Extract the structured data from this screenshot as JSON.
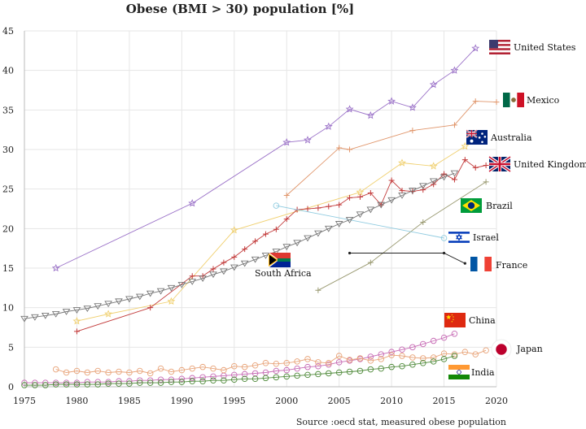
{
  "chart_data": {
    "type": "line",
    "title": "Obese (BMI > 30) population [%]",
    "source": "Source :oecd stat, measured obese population",
    "xlabel": "",
    "ylabel": "",
    "xlim": [
      1975,
      2020
    ],
    "ylim": [
      0,
      45
    ],
    "xticks": [
      1975,
      1980,
      1985,
      1990,
      1995,
      2000,
      2005,
      2010,
      2015,
      2020
    ],
    "yticks": [
      0,
      5,
      10,
      15,
      20,
      25,
      30,
      35,
      40,
      45
    ],
    "grid": true,
    "series": [
      {
        "name": "United States",
        "color": "#9b72c8",
        "marker": "star",
        "flag": "us",
        "points": [
          [
            1978,
            15.0
          ],
          [
            1991,
            23.2
          ],
          [
            2000,
            30.9
          ],
          [
            2002,
            31.2
          ],
          [
            2004,
            32.9
          ],
          [
            2006,
            35.1
          ],
          [
            2008,
            34.3
          ],
          [
            2010,
            36.1
          ],
          [
            2012,
            35.3
          ],
          [
            2014,
            38.2
          ],
          [
            2016,
            40.0
          ],
          [
            2018,
            42.8
          ]
        ]
      },
      {
        "name": "Mexico",
        "color": "#e0956a",
        "marker": "plus",
        "flag": "mx",
        "points": [
          [
            2000,
            24.2
          ],
          [
            2005,
            30.2
          ],
          [
            2006,
            30.0
          ],
          [
            2012,
            32.4
          ],
          [
            2016,
            33.1
          ],
          [
            2018,
            36.1
          ],
          [
            2020,
            36.0
          ]
        ]
      },
      {
        "name": "Australia",
        "color": "#f0d070",
        "marker": "star",
        "flag": "au",
        "points": [
          [
            1980,
            8.3
          ],
          [
            1983,
            9.2
          ],
          [
            1989,
            10.8
          ],
          [
            1995,
            19.8
          ],
          [
            2007,
            24.6
          ],
          [
            2011,
            28.3
          ],
          [
            2014,
            27.9
          ],
          [
            2017,
            30.4
          ]
        ]
      },
      {
        "name": "United Kingdom",
        "color": "#c23a3a",
        "marker": "plus",
        "flag": "gb",
        "points": [
          [
            1980,
            7.0
          ],
          [
            1987,
            10.0
          ],
          [
            1991,
            14.0
          ],
          [
            1992,
            14.0
          ],
          [
            1993,
            14.9
          ],
          [
            1994,
            15.7
          ],
          [
            1995,
            16.4
          ],
          [
            1996,
            17.4
          ],
          [
            1997,
            18.4
          ],
          [
            1998,
            19.3
          ],
          [
            1999,
            19.9
          ],
          [
            2000,
            21.2
          ],
          [
            2001,
            22.4
          ],
          [
            2002,
            22.5
          ],
          [
            2003,
            22.6
          ],
          [
            2004,
            22.8
          ],
          [
            2005,
            23.0
          ],
          [
            2006,
            23.9
          ],
          [
            2007,
            24.0
          ],
          [
            2008,
            24.5
          ],
          [
            2009,
            23.0
          ],
          [
            2010,
            26.1
          ],
          [
            2011,
            24.8
          ],
          [
            2012,
            24.7
          ],
          [
            2013,
            24.9
          ],
          [
            2014,
            25.6
          ],
          [
            2015,
            26.9
          ],
          [
            2016,
            26.2
          ],
          [
            2017,
            28.7
          ],
          [
            2018,
            27.7
          ],
          [
            2019,
            28.0
          ]
        ]
      },
      {
        "name": "Brazil",
        "color": "#9a9a72",
        "marker": "plus",
        "flag": "br",
        "points": [
          [
            2003,
            12.2
          ],
          [
            2008,
            15.7
          ],
          [
            2013,
            20.8
          ],
          [
            2019,
            25.9
          ]
        ]
      },
      {
        "name": "Israel",
        "color": "#8fcbe0",
        "marker": "circle",
        "flag": "il",
        "points": [
          [
            1999,
            22.9
          ],
          [
            2015,
            18.8
          ]
        ]
      },
      {
        "name": "France",
        "color": "#222222",
        "marker": "dot",
        "flag": "fr",
        "points": [
          [
            2006,
            16.9
          ],
          [
            2015,
            16.9
          ],
          [
            2017,
            15.6
          ]
        ]
      },
      {
        "name": "South Africa",
        "color": "#777777",
        "marker": "triangle-down",
        "flag": "za",
        "points": [
          [
            1975,
            8.6
          ],
          [
            1976,
            8.8
          ],
          [
            1977,
            9.0
          ],
          [
            1978,
            9.2
          ],
          [
            1979,
            9.5
          ],
          [
            1980,
            9.7
          ],
          [
            1981,
            9.9
          ],
          [
            1982,
            10.2
          ],
          [
            1983,
            10.5
          ],
          [
            1984,
            10.8
          ],
          [
            1985,
            11.1
          ],
          [
            1986,
            11.4
          ],
          [
            1987,
            11.8
          ],
          [
            1988,
            12.1
          ],
          [
            1989,
            12.5
          ],
          [
            1990,
            12.9
          ],
          [
            1991,
            13.3
          ],
          [
            1992,
            13.7
          ],
          [
            1993,
            14.2
          ],
          [
            1994,
            14.6
          ],
          [
            1995,
            15.1
          ],
          [
            1996,
            15.6
          ],
          [
            1997,
            16.1
          ],
          [
            1998,
            16.6
          ],
          [
            1999,
            17.1
          ],
          [
            2000,
            17.7
          ],
          [
            2001,
            18.2
          ],
          [
            2002,
            18.8
          ],
          [
            2003,
            19.4
          ],
          [
            2004,
            20.0
          ],
          [
            2005,
            20.6
          ],
          [
            2006,
            21.1
          ],
          [
            2007,
            21.8
          ],
          [
            2008,
            22.4
          ],
          [
            2009,
            23.0
          ],
          [
            2010,
            23.6
          ],
          [
            2011,
            24.2
          ],
          [
            2012,
            24.8
          ],
          [
            2013,
            25.4
          ],
          [
            2014,
            26.0
          ],
          [
            2015,
            26.5
          ],
          [
            2016,
            27.0
          ]
        ]
      },
      {
        "name": "China",
        "color": "#c76bb5",
        "marker": "circle",
        "flag": "cn",
        "points": [
          [
            1975,
            0.5
          ],
          [
            1976,
            0.5
          ],
          [
            1977,
            0.5
          ],
          [
            1978,
            0.5
          ],
          [
            1979,
            0.5
          ],
          [
            1980,
            0.5
          ],
          [
            1981,
            0.6
          ],
          [
            1982,
            0.6
          ],
          [
            1983,
            0.6
          ],
          [
            1984,
            0.7
          ],
          [
            1985,
            0.7
          ],
          [
            1986,
            0.8
          ],
          [
            1987,
            0.8
          ],
          [
            1988,
            0.9
          ],
          [
            1989,
            0.9
          ],
          [
            1990,
            1.0
          ],
          [
            1991,
            1.1
          ],
          [
            1992,
            1.2
          ],
          [
            1993,
            1.3
          ],
          [
            1994,
            1.4
          ],
          [
            1995,
            1.5
          ],
          [
            1996,
            1.6
          ],
          [
            1997,
            1.7
          ],
          [
            1998,
            1.8
          ],
          [
            1999,
            2.0
          ],
          [
            2000,
            2.1
          ],
          [
            2001,
            2.3
          ],
          [
            2002,
            2.5
          ],
          [
            2003,
            2.6
          ],
          [
            2004,
            2.8
          ],
          [
            2005,
            3.1
          ],
          [
            2006,
            3.3
          ],
          [
            2007,
            3.5
          ],
          [
            2008,
            3.8
          ],
          [
            2009,
            4.1
          ],
          [
            2010,
            4.4
          ],
          [
            2011,
            4.7
          ],
          [
            2012,
            5.0
          ],
          [
            2013,
            5.4
          ],
          [
            2014,
            5.8
          ],
          [
            2015,
            6.2
          ],
          [
            2016,
            6.7
          ]
        ]
      },
      {
        "name": "Japan",
        "color": "#e8a47a",
        "marker": "circle",
        "flag": "jp",
        "points": [
          [
            1978,
            2.2
          ],
          [
            1979,
            1.8
          ],
          [
            1980,
            2.0
          ],
          [
            1981,
            1.8
          ],
          [
            1982,
            2.0
          ],
          [
            1983,
            1.8
          ],
          [
            1984,
            1.9
          ],
          [
            1985,
            1.8
          ],
          [
            1986,
            2.0
          ],
          [
            1987,
            1.7
          ],
          [
            1988,
            2.3
          ],
          [
            1989,
            1.9
          ],
          [
            1990,
            2.1
          ],
          [
            1991,
            2.3
          ],
          [
            1992,
            2.5
          ],
          [
            1993,
            2.3
          ],
          [
            1994,
            2.1
          ],
          [
            1995,
            2.6
          ],
          [
            1996,
            2.5
          ],
          [
            1997,
            2.7
          ],
          [
            1998,
            3.0
          ],
          [
            1999,
            2.9
          ],
          [
            2000,
            3.0
          ],
          [
            2001,
            3.2
          ],
          [
            2002,
            3.5
          ],
          [
            2003,
            3.1
          ],
          [
            2004,
            3.0
          ],
          [
            2005,
            3.9
          ],
          [
            2006,
            3.4
          ],
          [
            2007,
            3.6
          ],
          [
            2008,
            3.3
          ],
          [
            2009,
            3.5
          ],
          [
            2010,
            4.0
          ],
          [
            2011,
            3.9
          ],
          [
            2012,
            3.7
          ],
          [
            2013,
            3.6
          ],
          [
            2014,
            3.7
          ],
          [
            2015,
            4.2
          ],
          [
            2016,
            4.1
          ],
          [
            2017,
            4.4
          ],
          [
            2018,
            4.1
          ],
          [
            2019,
            4.6
          ]
        ]
      },
      {
        "name": "India",
        "color": "#4f8a3a",
        "marker": "circle",
        "flag": "in",
        "points": [
          [
            1975,
            0.2
          ],
          [
            1976,
            0.2
          ],
          [
            1977,
            0.2
          ],
          [
            1978,
            0.3
          ],
          [
            1979,
            0.3
          ],
          [
            1980,
            0.3
          ],
          [
            1981,
            0.3
          ],
          [
            1982,
            0.3
          ],
          [
            1983,
            0.4
          ],
          [
            1984,
            0.4
          ],
          [
            1985,
            0.4
          ],
          [
            1986,
            0.5
          ],
          [
            1987,
            0.5
          ],
          [
            1988,
            0.5
          ],
          [
            1989,
            0.6
          ],
          [
            1990,
            0.6
          ],
          [
            1991,
            0.7
          ],
          [
            1992,
            0.7
          ],
          [
            1993,
            0.8
          ],
          [
            1994,
            0.8
          ],
          [
            1995,
            0.9
          ],
          [
            1996,
            1.0
          ],
          [
            1997,
            1.0
          ],
          [
            1998,
            1.1
          ],
          [
            1999,
            1.2
          ],
          [
            2000,
            1.3
          ],
          [
            2001,
            1.4
          ],
          [
            2002,
            1.5
          ],
          [
            2003,
            1.6
          ],
          [
            2004,
            1.7
          ],
          [
            2005,
            1.8
          ],
          [
            2006,
            1.9
          ],
          [
            2007,
            2.0
          ],
          [
            2008,
            2.2
          ],
          [
            2009,
            2.3
          ],
          [
            2010,
            2.5
          ],
          [
            2011,
            2.6
          ],
          [
            2012,
            2.8
          ],
          [
            2013,
            3.0
          ],
          [
            2014,
            3.2
          ],
          [
            2015,
            3.5
          ],
          [
            2016,
            3.9
          ]
        ]
      }
    ]
  }
}
